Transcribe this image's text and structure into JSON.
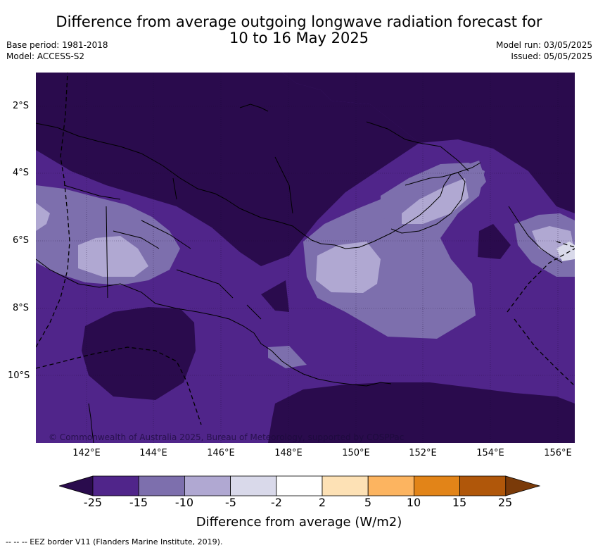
{
  "header": {
    "title_line1": "Difference from average outgoing longwave radiation forecast for",
    "title_line2": "10 to 16 May 2025",
    "base_period": "Base period: 1981-2018",
    "model": "Model: ACCESS-S2",
    "model_run": "Model run: 03/05/2025",
    "issued": "Issued: 05/05/2025"
  },
  "map": {
    "lat_ticks": [
      "2°S",
      "4°S",
      "6°S",
      "8°S",
      "10°S"
    ],
    "lon_ticks": [
      "142°E",
      "144°E",
      "146°E",
      "148°E",
      "150°E",
      "152°E",
      "154°E",
      "156°E"
    ],
    "copyright": "© Commonwealth of Australia 2025, Bureau of Meteorology, supported by COSPPac",
    "colors": {
      "lt_-25": "#2a0b4d",
      "-25_-15": "#50258a",
      "-15_-10": "#7d6fad",
      "-10_-5": "#b0a8d2",
      "coast": "#000000"
    }
  },
  "legend": {
    "labels": [
      "-25",
      "-15",
      "-10",
      "-5",
      "-2",
      "2",
      "5",
      "10",
      "15",
      "25"
    ],
    "colors": [
      "#2a0b4d",
      "#50258a",
      "#7d6fad",
      "#b0a8d2",
      "#d9d9ea",
      "#ffffff",
      "#fde1b5",
      "#fcb460",
      "#e28418",
      "#b0570a",
      "#7a3a09"
    ],
    "title": "Difference from average (W/m2)"
  },
  "footnote": "--  --  -- EEZ border V11 (Flanders Marine Institute, 2019)."
}
